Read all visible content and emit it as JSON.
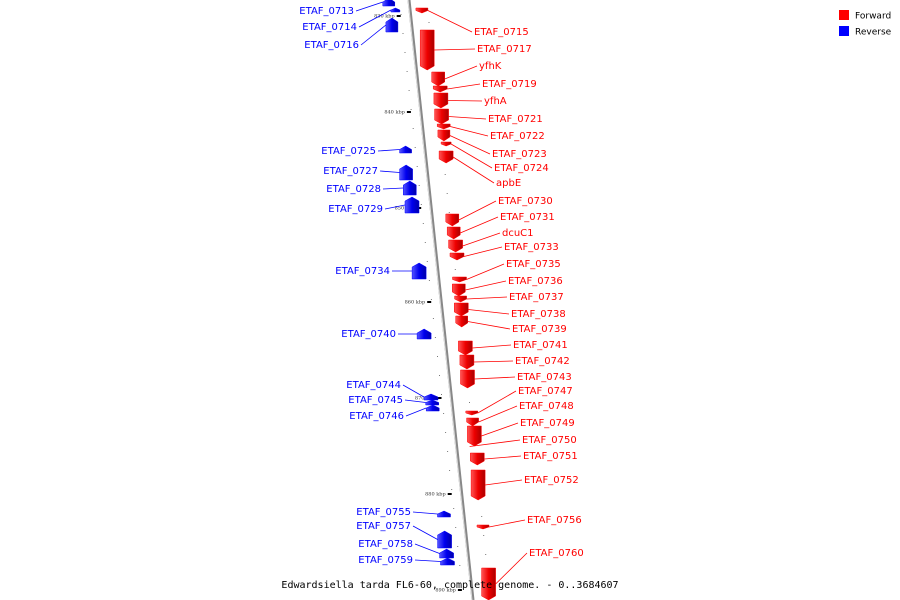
{
  "colors": {
    "forward": "#ff0000",
    "reverse": "#0000ff",
    "axis": "#888888"
  },
  "legend": [
    {
      "label": "Forward",
      "color": "#ff0000"
    },
    {
      "label": "Reverse",
      "color": "#0000ff"
    }
  ],
  "caption": "Edwardsiella tarda FL6-60, complete genome. - 0..3684607",
  "kbp_marks": [
    "830 kbp",
    "840 kbp",
    "850 kbp",
    "860 kbp",
    "870 kbp",
    "880 kbp",
    "890 kbp"
  ],
  "genes": [
    {
      "name": "ETAF_0713",
      "strand": "reverse"
    },
    {
      "name": "ETAF_0714",
      "strand": "reverse"
    },
    {
      "name": "ETAF_0716",
      "strand": "reverse"
    },
    {
      "name": "ETAF_0715",
      "strand": "forward"
    },
    {
      "name": "ETAF_0717",
      "strand": "forward"
    },
    {
      "name": "yfhK",
      "strand": "forward"
    },
    {
      "name": "ETAF_0719",
      "strand": "forward"
    },
    {
      "name": "yfhA",
      "strand": "forward"
    },
    {
      "name": "ETAF_0721",
      "strand": "forward"
    },
    {
      "name": "ETAF_0722",
      "strand": "forward"
    },
    {
      "name": "ETAF_0723",
      "strand": "forward"
    },
    {
      "name": "ETAF_0724",
      "strand": "forward"
    },
    {
      "name": "apbE",
      "strand": "forward"
    },
    {
      "name": "ETAF_0725",
      "strand": "reverse"
    },
    {
      "name": "ETAF_0727",
      "strand": "reverse"
    },
    {
      "name": "ETAF_0728",
      "strand": "reverse"
    },
    {
      "name": "ETAF_0729",
      "strand": "reverse"
    },
    {
      "name": "ETAF_0730",
      "strand": "forward"
    },
    {
      "name": "ETAF_0731",
      "strand": "forward"
    },
    {
      "name": "dcuC1",
      "strand": "forward"
    },
    {
      "name": "ETAF_0733",
      "strand": "forward"
    },
    {
      "name": "ETAF_0734",
      "strand": "reverse"
    },
    {
      "name": "ETAF_0735",
      "strand": "forward"
    },
    {
      "name": "ETAF_0736",
      "strand": "forward"
    },
    {
      "name": "ETAF_0737",
      "strand": "forward"
    },
    {
      "name": "ETAF_0738",
      "strand": "forward"
    },
    {
      "name": "ETAF_0739",
      "strand": "forward"
    },
    {
      "name": "ETAF_0740",
      "strand": "reverse"
    },
    {
      "name": "ETAF_0741",
      "strand": "forward"
    },
    {
      "name": "ETAF_0742",
      "strand": "forward"
    },
    {
      "name": "ETAF_0743",
      "strand": "forward"
    },
    {
      "name": "ETAF_0744",
      "strand": "reverse"
    },
    {
      "name": "ETAF_0745",
      "strand": "reverse"
    },
    {
      "name": "ETAF_0746",
      "strand": "reverse"
    },
    {
      "name": "ETAF_0747",
      "strand": "forward"
    },
    {
      "name": "ETAF_0748",
      "strand": "forward"
    },
    {
      "name": "ETAF_0749",
      "strand": "forward"
    },
    {
      "name": "ETAF_0750",
      "strand": "forward"
    },
    {
      "name": "ETAF_0751",
      "strand": "forward"
    },
    {
      "name": "ETAF_0752",
      "strand": "forward"
    },
    {
      "name": "ETAF_0755",
      "strand": "reverse"
    },
    {
      "name": "ETAF_0756",
      "strand": "forward"
    },
    {
      "name": "ETAF_0757",
      "strand": "reverse"
    },
    {
      "name": "ETAF_0758",
      "strand": "reverse"
    },
    {
      "name": "ETAF_0759",
      "strand": "reverse"
    },
    {
      "name": "ETAF_0760",
      "strand": "forward"
    }
  ]
}
